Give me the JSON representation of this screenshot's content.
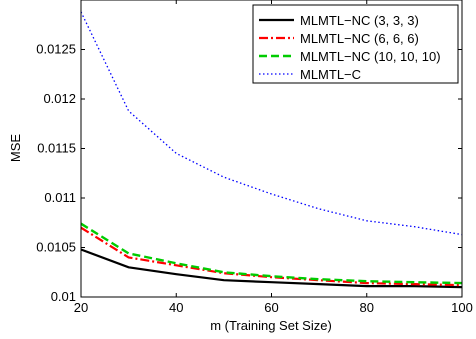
{
  "chart_data": {
    "type": "line",
    "title": "",
    "xlabel": "m (Training Set Size)",
    "ylabel": "MSE",
    "xlim": [
      20,
      100
    ],
    "ylim": [
      0.01,
      0.013
    ],
    "grid": false,
    "legend_position": "top-right",
    "x_ticks": [
      20,
      40,
      60,
      80,
      100
    ],
    "x_tick_labels": [
      "20",
      "40",
      "60",
      "80",
      "100"
    ],
    "y_ticks": [
      0.01,
      0.0105,
      0.011,
      0.0115,
      0.012,
      0.0125
    ],
    "y_tick_labels": [
      "0.01",
      "0.0105",
      "0.011",
      "0.0115",
      "0.012",
      "0.0125"
    ],
    "x": [
      20,
      30,
      40,
      50,
      60,
      70,
      80,
      90,
      100
    ],
    "series": [
      {
        "name": "MLMTL−NC (3, 3, 3)",
        "color": "#000000",
        "dash": "solid",
        "values": [
          0.01048,
          0.0103,
          0.01023,
          0.01017,
          0.01015,
          0.01013,
          0.01011,
          0.01011,
          0.0101
        ]
      },
      {
        "name": "MLMTL−NC (6, 6, 6)",
        "color": "#ff0000",
        "dash": "dashdot",
        "values": [
          0.0107,
          0.0104,
          0.01032,
          0.01024,
          0.0102,
          0.01017,
          0.01014,
          0.01013,
          0.01012
        ]
      },
      {
        "name": "MLMTL−NC (10, 10, 10)",
        "color": "#00cc00",
        "dash": "dashed",
        "values": [
          0.01074,
          0.01044,
          0.01034,
          0.01025,
          0.01021,
          0.01018,
          0.01016,
          0.01015,
          0.01014
        ]
      },
      {
        "name": "MLMTL−C",
        "color": "#0000ff",
        "dash": "dotted",
        "values": [
          0.01288,
          0.01188,
          0.01145,
          0.01121,
          0.01104,
          0.01089,
          0.01077,
          0.01071,
          0.01063
        ]
      }
    ]
  }
}
